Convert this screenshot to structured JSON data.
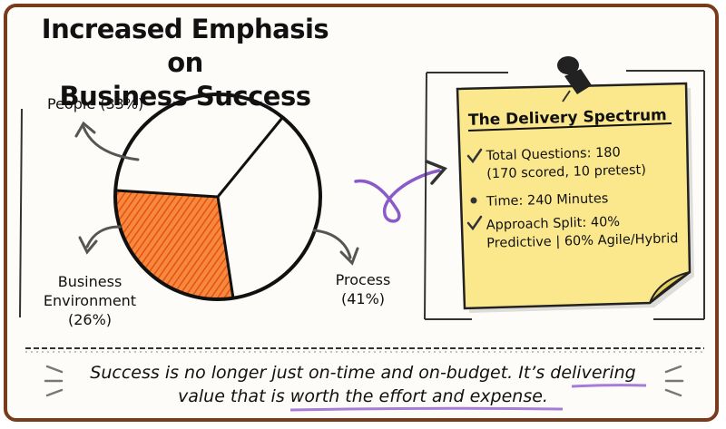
{
  "title": {
    "line1": "Increased Emphasis on",
    "line2": "Business Success"
  },
  "pie": {
    "slices": [
      {
        "label": "People (33%)",
        "value": 33
      },
      {
        "label": "Process (41%)",
        "value": 41
      },
      {
        "label_lines": [
          "Business",
          "Environment",
          "(26%)"
        ],
        "value": 26,
        "highlighted": true
      }
    ],
    "people_label": "People (33%)",
    "process_label_lines": [
      "Process",
      "(41%)"
    ],
    "business_label_lines": [
      "Business",
      "Environment",
      "(26%)"
    ]
  },
  "note": {
    "title": "The Delivery Spectrum",
    "item1_lines": [
      "Total Questions: 180",
      "(170 scored, 10 pretest)"
    ],
    "item2": "Time: 240 Minutes",
    "item3_lines": [
      "Approach Split: 40%",
      "Predictive | 60% Agile/Hybrid"
    ]
  },
  "bottom": {
    "line1": "Success is no longer just on-time and on-budget. It’s delivering",
    "line2": "value that is worth the effort and expense."
  },
  "colors": {
    "frame": "#7a3a1c",
    "highlight_slice": "#f26b1d",
    "note": "#fbe88d",
    "accent_underline": "#a77bd6",
    "arrow": "#555555"
  }
}
